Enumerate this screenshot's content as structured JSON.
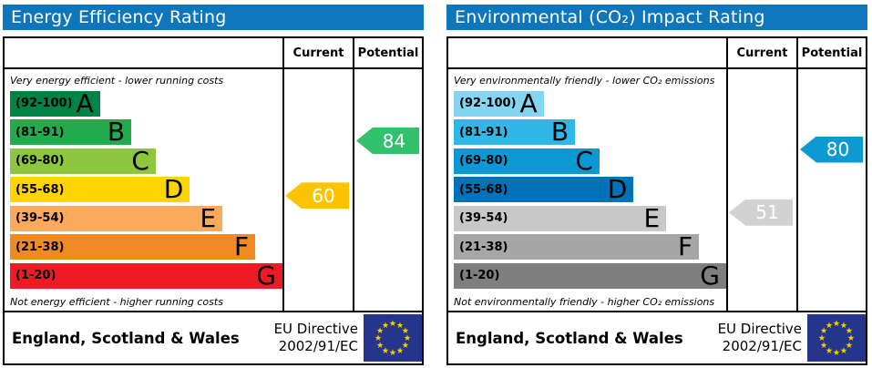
{
  "colors": {
    "title_bar": "#1076bc",
    "border": "#000000",
    "flag_blue": "#25358c",
    "flag_stars": "#ffcc00"
  },
  "chart_data": [
    {
      "type": "bar",
      "id": "energy-efficiency",
      "title": "Energy Efficiency Rating",
      "columns": [
        "Current",
        "Potential"
      ],
      "top_caption": "Very energy efficient - lower running costs",
      "bottom_caption": "Not energy efficient - higher running costs",
      "categories": [
        "A",
        "B",
        "C",
        "D",
        "E",
        "F",
        "G"
      ],
      "bands": [
        {
          "letter": "A",
          "range": "(92-100)",
          "min": 92,
          "max": 100,
          "width_pct": 33,
          "color": "#008445"
        },
        {
          "letter": "B",
          "range": "(81-91)",
          "min": 81,
          "max": 91,
          "width_pct": 44.5,
          "color": "#23ac4e"
        },
        {
          "letter": "C",
          "range": "(69-80)",
          "min": 69,
          "max": 80,
          "width_pct": 53.5,
          "color": "#8ec63f"
        },
        {
          "letter": "D",
          "range": "(55-68)",
          "min": 55,
          "max": 68,
          "width_pct": 66,
          "color": "#fed500"
        },
        {
          "letter": "E",
          "range": "(39-54)",
          "min": 39,
          "max": 54,
          "width_pct": 78,
          "color": "#fbaa5d"
        },
        {
          "letter": "F",
          "range": "(21-38)",
          "min": 21,
          "max": 38,
          "width_pct": 90,
          "color": "#f08b24"
        },
        {
          "letter": "G",
          "range": "(1-20)",
          "min": 1,
          "max": 20,
          "width_pct": 100,
          "color": "#ed1c24"
        }
      ],
      "current": {
        "value": 60,
        "band": "D",
        "color": "#fcc400"
      },
      "potential": {
        "value": 84,
        "band": "B",
        "color": "#32c16d"
      },
      "footer_region": "England, Scotland & Wales",
      "eu_directive": [
        "EU Directive",
        "2002/91/EC"
      ]
    },
    {
      "type": "bar",
      "id": "co2-impact",
      "title": "Environmental (CO₂) Impact Rating",
      "columns": [
        "Current",
        "Potential"
      ],
      "top_caption": "Very environmentally friendly - lower CO₂ emissions",
      "bottom_caption": "Not environmentally friendly - higher CO₂ emissions",
      "categories": [
        "A",
        "B",
        "C",
        "D",
        "E",
        "F",
        "G"
      ],
      "bands": [
        {
          "letter": "A",
          "range": "(92-100)",
          "min": 92,
          "max": 100,
          "width_pct": 33,
          "color": "#84d5f2"
        },
        {
          "letter": "B",
          "range": "(81-91)",
          "min": 81,
          "max": 91,
          "width_pct": 44.5,
          "color": "#30b7e9"
        },
        {
          "letter": "C",
          "range": "(69-80)",
          "min": 69,
          "max": 80,
          "width_pct": 53.5,
          "color": "#0b99d4"
        },
        {
          "letter": "D",
          "range": "(55-68)",
          "min": 55,
          "max": 68,
          "width_pct": 66,
          "color": "#0072b8"
        },
        {
          "letter": "E",
          "range": "(39-54)",
          "min": 39,
          "max": 54,
          "width_pct": 78,
          "color": "#c8c8c8"
        },
        {
          "letter": "F",
          "range": "(21-38)",
          "min": 21,
          "max": 38,
          "width_pct": 90,
          "color": "#a6a6a6"
        },
        {
          "letter": "G",
          "range": "(1-20)",
          "min": 1,
          "max": 20,
          "width_pct": 100,
          "color": "#7e7e7e"
        }
      ],
      "current": {
        "value": 51,
        "band": "E",
        "color": "#d2d2d2"
      },
      "potential": {
        "value": 80,
        "band": "C",
        "color": "#0d9ad2"
      },
      "footer_region": "England, Scotland & Wales",
      "eu_directive": [
        "EU Directive",
        "2002/91/EC"
      ]
    }
  ]
}
